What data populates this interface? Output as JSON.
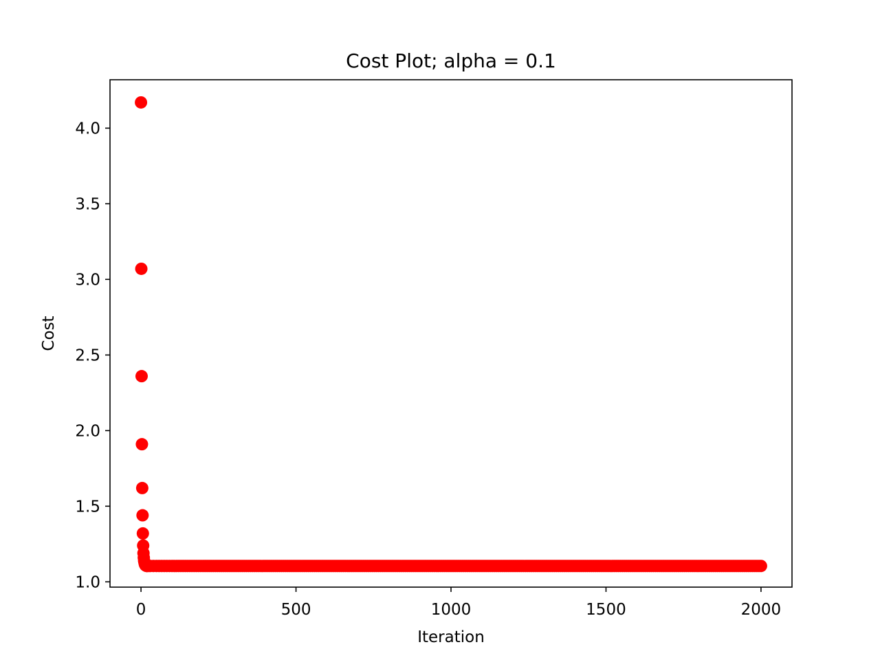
{
  "chart_data": {
    "type": "scatter",
    "title": "Cost Plot; alpha = 0.1",
    "xlabel": "Iteration",
    "ylabel": "Cost",
    "xlim": [
      -100,
      2100
    ],
    "ylim": [
      0.965,
      4.32
    ],
    "xticks": [
      0,
      500,
      1000,
      1500,
      2000
    ],
    "xtick_labels": [
      "0",
      "500",
      "1000",
      "1500",
      "2000"
    ],
    "yticks": [
      1.0,
      1.5,
      2.0,
      2.5,
      3.0,
      3.5,
      4.0
    ],
    "ytick_labels": [
      "1.0",
      "1.5",
      "2.0",
      "2.5",
      "3.0",
      "3.5",
      "4.0"
    ],
    "grid": false,
    "legend": "none",
    "color": "#ff0000",
    "series": [
      {
        "x": [
          0,
          1,
          2,
          3,
          4,
          5,
          6,
          7,
          8,
          9,
          10,
          11,
          12,
          13,
          14,
          15,
          16,
          17,
          18,
          19,
          20,
          25,
          30,
          40,
          50,
          75,
          100,
          150,
          200,
          300,
          400,
          500,
          600,
          700,
          800,
          900,
          1000,
          1100,
          1200,
          1300,
          1400,
          1500,
          1600,
          1700,
          1800,
          1900,
          2000
        ],
        "y": [
          4.17,
          3.07,
          2.36,
          1.91,
          1.62,
          1.44,
          1.32,
          1.24,
          1.19,
          1.16,
          1.14,
          1.13,
          1.12,
          1.115,
          1.11,
          1.11,
          1.107,
          1.106,
          1.105,
          1.105,
          1.105,
          1.105,
          1.105,
          1.105,
          1.105,
          1.105,
          1.105,
          1.105,
          1.105,
          1.105,
          1.105,
          1.105,
          1.105,
          1.105,
          1.105,
          1.105,
          1.105,
          1.105,
          1.105,
          1.105,
          1.105,
          1.105,
          1.105,
          1.105,
          1.105,
          1.105,
          1.105
        ]
      }
    ]
  }
}
